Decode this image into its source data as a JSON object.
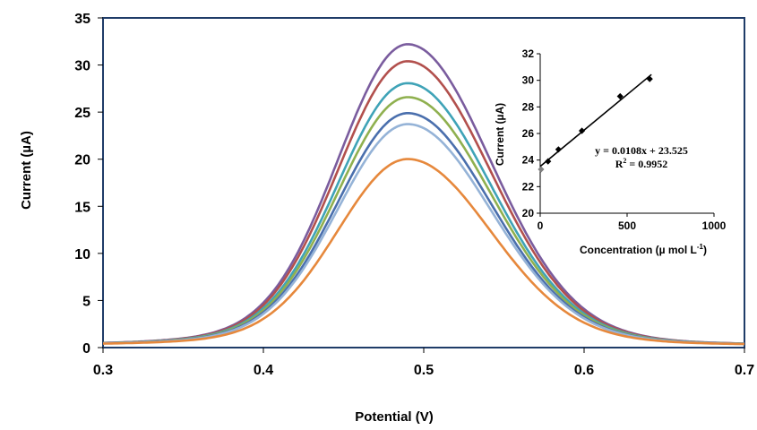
{
  "chart_data": [
    {
      "type": "line",
      "title": "",
      "xlabel": "Potential (V)",
      "ylabel": "Current (µA)",
      "xlim": [
        0.3,
        0.7
      ],
      "ylim": [
        0,
        35
      ],
      "xticks": [
        "0.3",
        "0.4",
        "0.5",
        "0.6",
        "0.7"
      ],
      "yticks": [
        "0",
        "5",
        "10",
        "15",
        "20",
        "25",
        "30",
        "35"
      ],
      "grid": false,
      "legend": "none",
      "series": [
        {
          "color": "#7A5C9E",
          "peak_x": 0.49,
          "peak_y": 30.1
        },
        {
          "color": "#B2504D",
          "peak_x": 0.49,
          "peak_y": 28.4
        },
        {
          "color": "#3FA3B7",
          "peak_x": 0.49,
          "peak_y": 26.2
        },
        {
          "color": "#8FB04F",
          "peak_x": 0.49,
          "peak_y": 24.8
        },
        {
          "color": "#4A6FAD",
          "peak_x": 0.49,
          "peak_y": 23.2
        },
        {
          "color": "#95B3D7",
          "peak_x": 0.49,
          "peak_y": 22.1
        },
        {
          "color": "#E6883C",
          "peak_x": 0.49,
          "peak_y": 18.6
        }
      ]
    },
    {
      "type": "scatter",
      "title": "",
      "xlabel": "Concentration (µ mol L",
      "xlabel_sup": "-1",
      "xlabel_end": ")",
      "ylabel": "Current (µA)",
      "xlim": [
        0,
        1000
      ],
      "ylim": [
        20,
        32
      ],
      "xticks": [
        "0",
        "500",
        "1000"
      ],
      "yticks": [
        "20",
        "22",
        "24",
        "26",
        "28",
        "30",
        "32"
      ],
      "x": [
        5,
        45,
        105,
        240,
        460,
        630
      ],
      "y": [
        23.3,
        23.9,
        24.8,
        26.2,
        28.8,
        30.1
      ],
      "fit": {
        "slope": 0.0108,
        "intercept": 23.525
      },
      "equation": "y = 0.0108x + 23.525",
      "r2_text": "R",
      "r2_sup": "2",
      "r2_value": " = 0.9952"
    }
  ]
}
